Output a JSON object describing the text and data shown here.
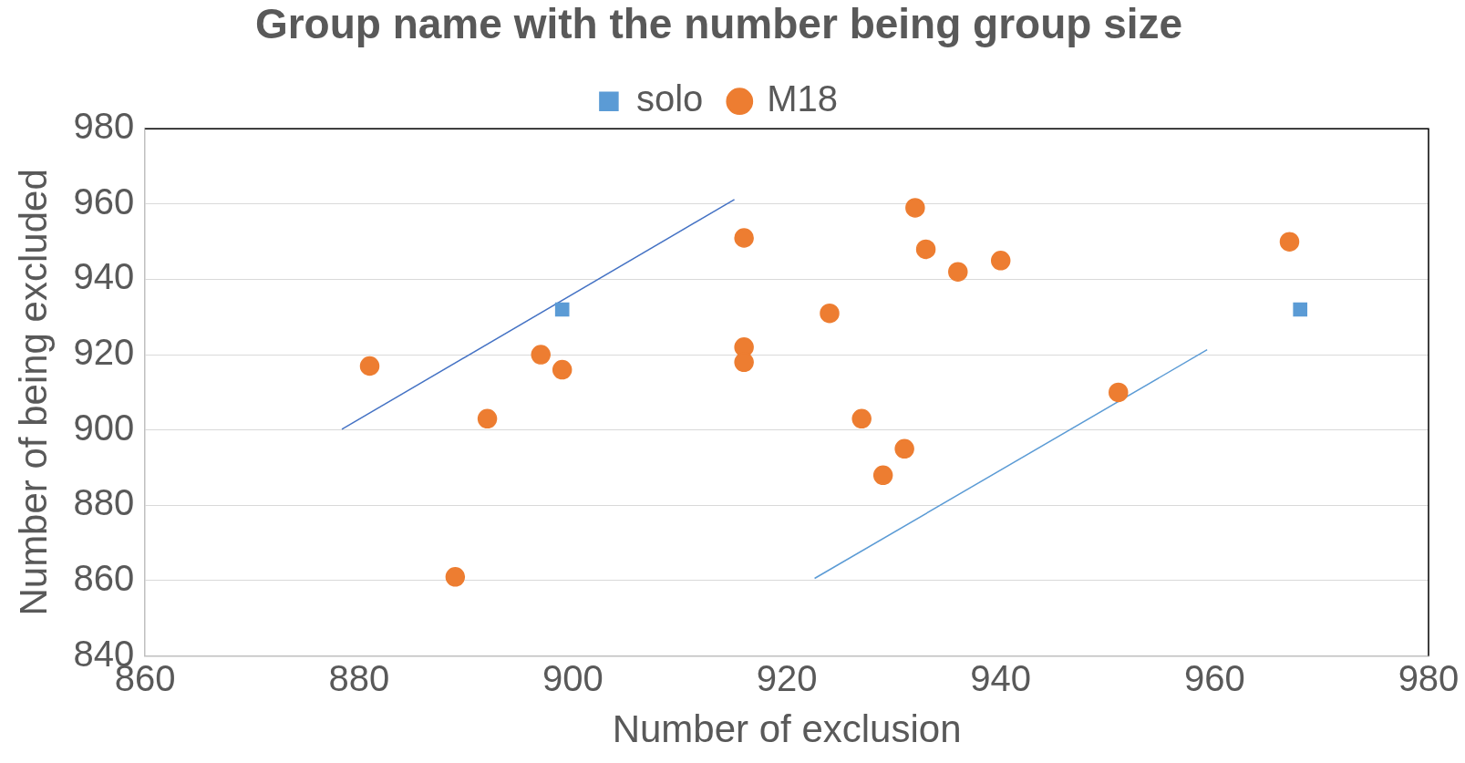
{
  "chart_data": {
    "type": "scatter",
    "title": "Group name with the number being group size",
    "xlabel": "Number of exclusion",
    "ylabel": "Number of being excluded",
    "xlim": [
      860,
      980
    ],
    "xticks": [
      860,
      880,
      900,
      920,
      940,
      960,
      980
    ],
    "ylim": [
      840,
      980
    ],
    "yticks": [
      840,
      860,
      880,
      900,
      920,
      940,
      960,
      980
    ],
    "grid": "y",
    "legend": "top",
    "series": [
      {
        "name": "solo",
        "color": "#5b9bd5",
        "marker": "square",
        "x": [
          899,
          968
        ],
        "values": [
          932,
          932
        ]
      },
      {
        "name": "M18",
        "color": "#ed7d31",
        "marker": "circle",
        "x": [
          881,
          889,
          892,
          897,
          899,
          916,
          916,
          916,
          924,
          927,
          929,
          931,
          932,
          933,
          936,
          940,
          951,
          967
        ],
        "values": [
          917,
          861,
          903,
          920,
          916,
          951,
          922,
          918,
          931,
          903,
          888,
          895,
          959,
          948,
          942,
          945,
          910,
          950
        ]
      },
      {
        "type": "line",
        "color": "#4472c4",
        "marker": "none",
        "x": [
          878.4,
          915.1
        ],
        "values": [
          900.2,
          961.2
        ]
      },
      {
        "type": "line",
        "color": "#5b9bd5",
        "marker": "none",
        "x": [
          922.6,
          959.3
        ],
        "values": [
          860.6,
          921.3
        ]
      }
    ]
  }
}
